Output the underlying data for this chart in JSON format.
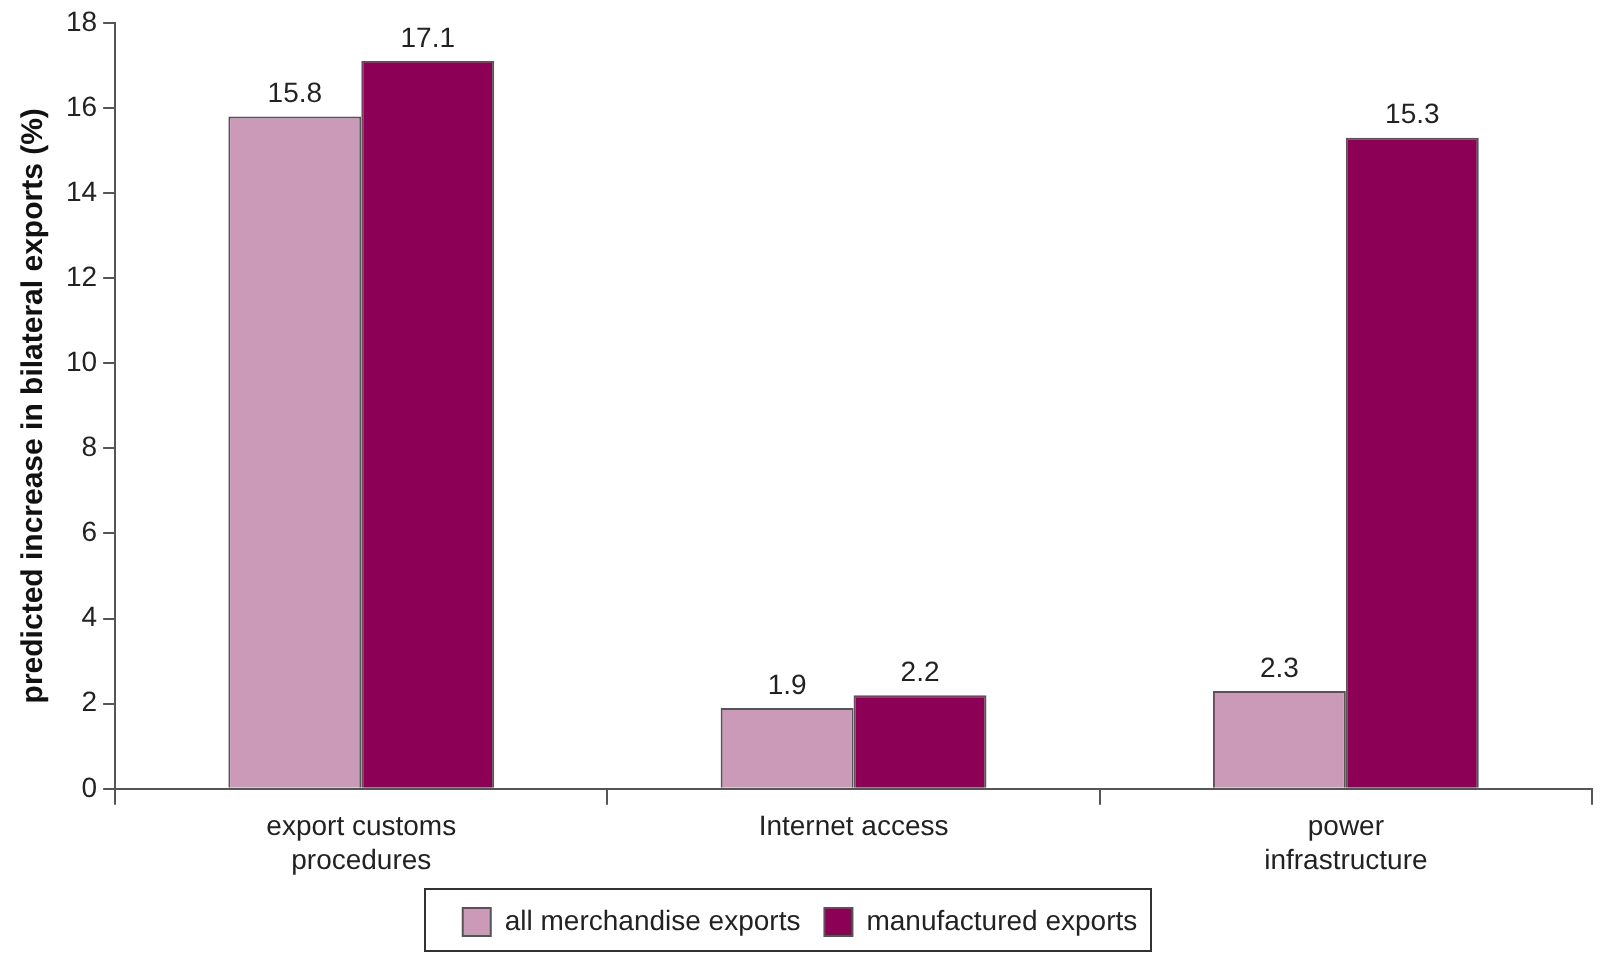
{
  "chart_data": {
    "type": "bar",
    "ylabel": "predicted increase in bilateral exports (%)",
    "categories": [
      "export customs procedures",
      "Internet access",
      "power infrastructure"
    ],
    "series": [
      {
        "name": "all merchandise exports",
        "color": "#cc9ab9",
        "values": [
          15.8,
          1.9,
          2.3
        ]
      },
      {
        "name": "manufactured exports",
        "color": "#8c0055",
        "values": [
          17.1,
          2.2,
          15.3
        ]
      }
    ],
    "ylim": [
      0,
      18
    ],
    "yticks": [
      0,
      2,
      4,
      6,
      8,
      10,
      12,
      14,
      16,
      18
    ],
    "grid": false,
    "legend": "bottom",
    "data_labels": true
  }
}
